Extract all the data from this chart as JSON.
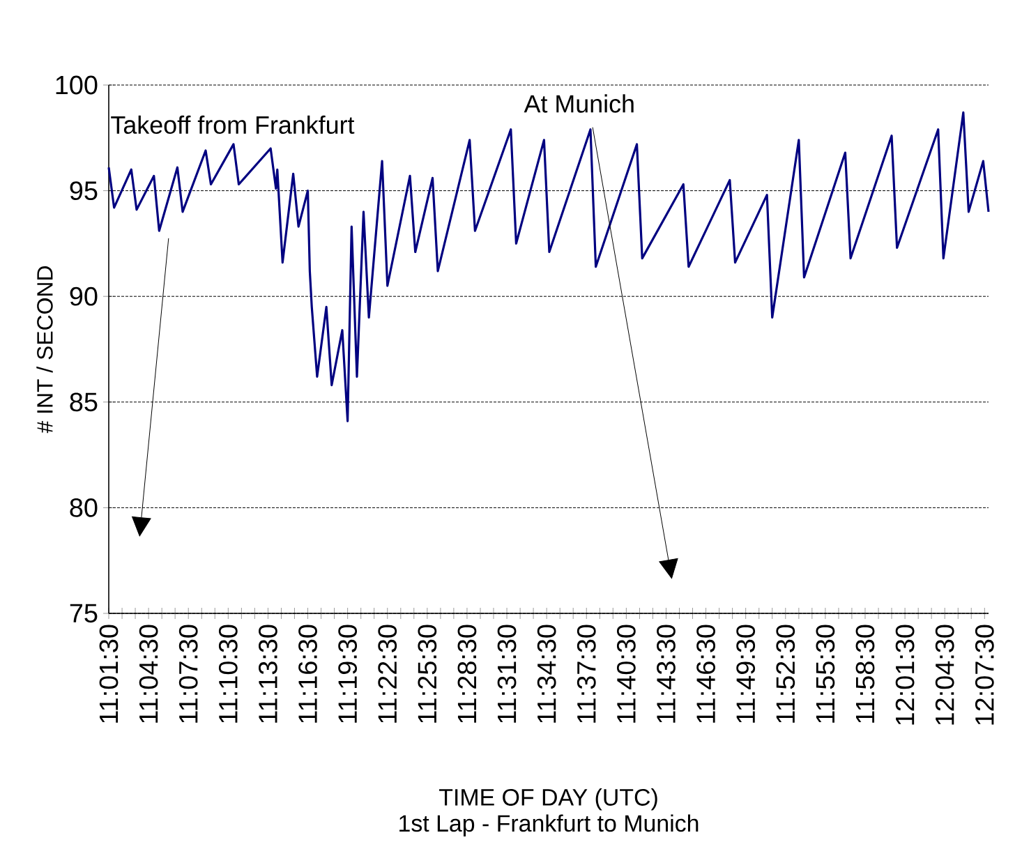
{
  "chart_data": {
    "type": "line",
    "xlabel": "TIME OF DAY (UTC)",
    "ylabel": "# INT / SECOND",
    "annotations": [
      "Takeoff from Frankfurt",
      "At Munich",
      "1st Lap - Frankfurt to Munich"
    ],
    "xlim": [
      11.025,
      12.13
    ],
    "ylim": [
      75,
      100
    ],
    "yticks": [
      75,
      80,
      85,
      90,
      95,
      100
    ],
    "xticks": [
      {
        "value": 11.025,
        "label": "11:01:30"
      },
      {
        "value": 11.0417,
        "label": null
      },
      {
        "value": 11.0583,
        "label": null
      },
      {
        "value": 11.075,
        "label": "11:04:30"
      },
      {
        "value": 11.0917,
        "label": null
      },
      {
        "value": 11.1083,
        "label": null
      },
      {
        "value": 11.125,
        "label": "11:07:30"
      },
      {
        "value": 11.1417,
        "label": null
      },
      {
        "value": 11.1583,
        "label": null
      },
      {
        "value": 11.175,
        "label": "11:10:30"
      },
      {
        "value": 11.1917,
        "label": null
      },
      {
        "value": 11.2083,
        "label": null
      },
      {
        "value": 11.225,
        "label": "11:13:30"
      },
      {
        "value": 11.2417,
        "label": null
      },
      {
        "value": 11.2583,
        "label": null
      },
      {
        "value": 11.275,
        "label": "11:16:30"
      },
      {
        "value": 11.2917,
        "label": null
      },
      {
        "value": 11.3083,
        "label": null
      },
      {
        "value": 11.325,
        "label": "11:19:30"
      },
      {
        "value": 11.3417,
        "label": null
      },
      {
        "value": 11.3583,
        "label": null
      },
      {
        "value": 11.375,
        "label": "11:22:30"
      },
      {
        "value": 11.3917,
        "label": null
      },
      {
        "value": 11.4083,
        "label": null
      },
      {
        "value": 11.425,
        "label": "11:25:30"
      },
      {
        "value": 11.4417,
        "label": null
      },
      {
        "value": 11.4583,
        "label": null
      },
      {
        "value": 11.475,
        "label": "11:28:30"
      },
      {
        "value": 11.4917,
        "label": null
      },
      {
        "value": 11.5083,
        "label": null
      },
      {
        "value": 11.525,
        "label": "11:31:30"
      },
      {
        "value": 11.5417,
        "label": null
      },
      {
        "value": 11.5583,
        "label": null
      },
      {
        "value": 11.575,
        "label": "11:34:30"
      },
      {
        "value": 11.5917,
        "label": null
      },
      {
        "value": 11.6083,
        "label": null
      },
      {
        "value": 11.625,
        "label": "11:37:30"
      },
      {
        "value": 11.6417,
        "label": null
      },
      {
        "value": 11.6583,
        "label": null
      },
      {
        "value": 11.675,
        "label": "11:40:30"
      },
      {
        "value": 11.6917,
        "label": null
      },
      {
        "value": 11.7083,
        "label": null
      },
      {
        "value": 11.725,
        "label": "11:43:30"
      },
      {
        "value": 11.7417,
        "label": null
      },
      {
        "value": 11.7583,
        "label": null
      },
      {
        "value": 11.775,
        "label": "11:46:30"
      },
      {
        "value": 11.7917,
        "label": null
      },
      {
        "value": 11.8083,
        "label": null
      },
      {
        "value": 11.825,
        "label": "11:49:30"
      },
      {
        "value": 11.8417,
        "label": null
      },
      {
        "value": 11.8583,
        "label": null
      },
      {
        "value": 11.875,
        "label": "11:52:30"
      },
      {
        "value": 11.8917,
        "label": null
      },
      {
        "value": 11.9083,
        "label": null
      },
      {
        "value": 11.925,
        "label": "11:55:30"
      },
      {
        "value": 11.9417,
        "label": null
      },
      {
        "value": 11.9583,
        "label": null
      },
      {
        "value": 11.975,
        "label": "11:58:30"
      },
      {
        "value": 11.9917,
        "label": null
      },
      {
        "value": 12.0083,
        "label": null
      },
      {
        "value": 12.025,
        "label": "12:01:30"
      },
      {
        "value": 12.0417,
        "label": null
      },
      {
        "value": 12.0583,
        "label": null
      },
      {
        "value": 12.075,
        "label": "12:04:30"
      },
      {
        "value": 12.0917,
        "label": null
      },
      {
        "value": 12.1083,
        "label": null
      },
      {
        "value": 12.125,
        "label": "12:07:30"
      }
    ],
    "grid": "y",
    "marker": "none",
    "line_style": "solid",
    "series": [
      {
        "color": "#000080",
        "x": [
          11.025,
          11.0317,
          11.0533,
          11.06,
          11.0817,
          11.0883,
          11.1112,
          11.1178,
          11.1467,
          11.1533,
          11.1817,
          11.1883,
          11.2283,
          11.235,
          11.2367,
          11.2433,
          11.2567,
          11.2633,
          11.275,
          11.2775,
          11.28,
          11.2867,
          11.2983,
          11.305,
          11.3183,
          11.325,
          11.33,
          11.3367,
          11.345,
          11.3517,
          11.3683,
          11.375,
          11.4033,
          11.41,
          11.4317,
          11.4383,
          11.4783,
          11.485,
          11.53,
          11.5367,
          11.5717,
          11.5783,
          11.63,
          11.6367,
          11.6883,
          11.695,
          11.7467,
          11.7533,
          11.805,
          11.8117,
          11.8517,
          11.8583,
          11.8917,
          11.8983,
          11.95,
          11.9567,
          12.0083,
          12.015,
          12.0667,
          12.0733,
          12.0983,
          12.105,
          12.1233,
          12.13
        ],
        "values": [
          96.1,
          94.2,
          96.0,
          94.1,
          95.7,
          93.1,
          96.1,
          94.0,
          96.9,
          95.3,
          97.2,
          95.3,
          97.0,
          95.1,
          96.0,
          91.6,
          95.8,
          93.3,
          95.0,
          91.2,
          89.5,
          86.2,
          89.5,
          85.8,
          88.4,
          84.1,
          93.3,
          86.2,
          94.0,
          89.0,
          96.4,
          90.5,
          95.7,
          92.1,
          95.6,
          91.2,
          97.4,
          93.1,
          97.9,
          92.5,
          97.4,
          92.1,
          97.9,
          91.4,
          97.2,
          91.8,
          95.3,
          91.4,
          95.5,
          91.6,
          94.8,
          89.0,
          97.4,
          90.9,
          96.8,
          91.8,
          97.6,
          92.3,
          97.9,
          91.8,
          98.7,
          94.0,
          96.4,
          94.0
        ]
      }
    ]
  }
}
